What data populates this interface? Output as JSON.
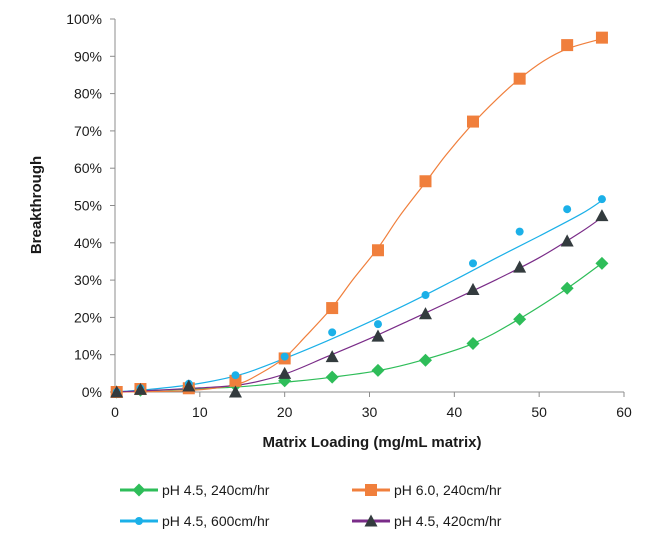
{
  "chart_data": {
    "type": "scatter",
    "title": "",
    "xlabel": "Matrix Loading (mg/mL matrix)",
    "ylabel": "Breakthrough",
    "xlim": [
      0,
      60
    ],
    "ylim": [
      0,
      100
    ],
    "xticks": [
      "0",
      "10",
      "20",
      "30",
      "40",
      "50",
      "60"
    ],
    "yticks": [
      "0%",
      "10%",
      "20%",
      "30%",
      "40%",
      "50%",
      "60%",
      "70%",
      "80%",
      "90%",
      "100%"
    ],
    "grid": false,
    "legend_position": "bottom",
    "series": [
      {
        "name": "pH 4.5, 240cm/hr",
        "color": "#2ebd59",
        "marker": "diamond",
        "x": [
          0.2,
          3,
          8.7,
          14.2,
          20,
          25.6,
          31,
          36.6,
          42.2,
          47.7,
          53.3,
          57.4
        ],
        "y": [
          0,
          0.5,
          1.2,
          1.8,
          3,
          4,
          5.8,
          8.5,
          13,
          19.5,
          27.8,
          34.5
        ],
        "curve_x": [
          0,
          14,
          20,
          25,
          31,
          36,
          42,
          47,
          53,
          57.5
        ],
        "curve_y": [
          0,
          1.3,
          2.6,
          3.8,
          5.7,
          8.4,
          12.8,
          18.7,
          27.3,
          34.7
        ]
      },
      {
        "name": "pH 6.0, 240cm/hr",
        "color": "#f07f3c",
        "marker": "square",
        "x": [
          0.2,
          3,
          8.7,
          14.2,
          20,
          25.6,
          31,
          36.6,
          42.2,
          47.7,
          53.3,
          57.4
        ],
        "y": [
          0,
          0.8,
          1,
          3,
          9,
          22.5,
          38,
          56.5,
          72.5,
          84,
          93,
          95
        ],
        "curve_x": [
          0,
          8.7,
          14.2,
          17,
          20,
          22.5,
          25.6,
          28,
          31,
          33.5,
          36.6,
          39,
          42.2,
          45,
          47.7,
          50.5,
          53.3,
          57.4
        ],
        "curve_y": [
          0,
          0.4,
          2,
          4.8,
          9.2,
          15,
          22.7,
          30,
          38.6,
          47,
          56.2,
          63.5,
          72,
          78.5,
          84,
          88.7,
          92,
          94.7
        ]
      },
      {
        "name": "pH 4.5, 600cm/hr",
        "color": "#1bb0e8",
        "marker": "circle",
        "x": [
          0.2,
          3,
          8.7,
          14.2,
          20,
          25.6,
          31,
          36.6,
          42.2,
          47.7,
          53.3,
          57.4
        ],
        "y": [
          0,
          1,
          2.2,
          4.5,
          9.5,
          16,
          18.2,
          26,
          34.5,
          43,
          49,
          51.7
        ],
        "curve_x": [
          0,
          5,
          10,
          15,
          20,
          25,
          30,
          35,
          40,
          45,
          50,
          55,
          57.5
        ],
        "curve_y": [
          0,
          0.9,
          2.3,
          4.8,
          9,
          13.7,
          18.8,
          24.2,
          30,
          36,
          41.8,
          47.8,
          51.5
        ]
      },
      {
        "name": "pH 4.5, 420cm/hr",
        "color": "#333b3e",
        "line_color": "#7a2c88",
        "marker": "triangle",
        "x": [
          0.2,
          3,
          8.7,
          14.2,
          20,
          25.6,
          31,
          36.6,
          42.2,
          47.7,
          53.3,
          57.4
        ],
        "y": [
          0,
          0.7,
          1.6,
          0,
          5,
          9.5,
          15,
          21,
          27.5,
          33.5,
          40.5,
          47.3
        ],
        "curve_x": [
          0,
          5,
          10,
          15,
          20,
          25,
          30,
          35,
          40,
          45,
          50,
          55,
          57.5
        ],
        "curve_y": [
          0,
          0.5,
          1.1,
          2,
          4.8,
          9.5,
          14.3,
          19.5,
          24.8,
          30.2,
          36,
          43,
          47
        ]
      }
    ]
  }
}
